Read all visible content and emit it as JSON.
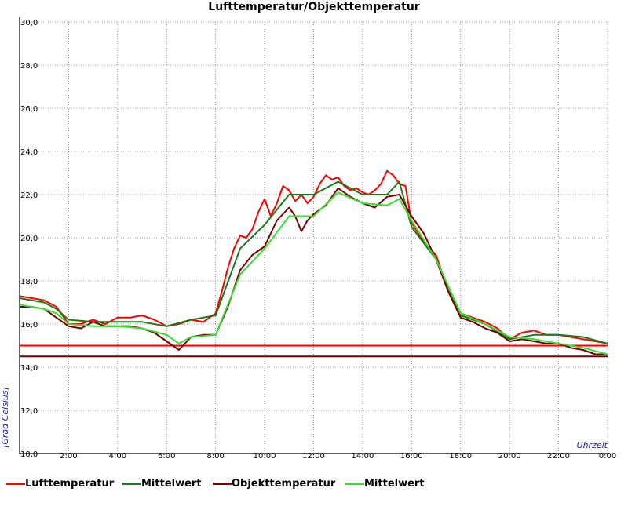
{
  "chart_data": {
    "type": "line",
    "title": "Lufttemperatur/Objekttemperatur",
    "ylabel": "[Grad Celsius]",
    "xlabel": "Uhrzeit",
    "xlim": [
      0,
      24
    ],
    "ylim": [
      10,
      30
    ],
    "y_ticks": [
      "10,0",
      "12,0",
      "14,0",
      "16,0",
      "18,0",
      "20,0",
      "22,0",
      "24,0",
      "26,0",
      "28,0",
      "30,0"
    ],
    "x_ticks": [
      "2:00",
      "4:00",
      "6:00",
      "8:00",
      "10:00",
      "12:00",
      "14:00",
      "16:00",
      "18:00",
      "20:00",
      "22:00",
      "0:00"
    ],
    "grid": true,
    "legend_position": "bottom",
    "reference_lines": [
      {
        "y": 15.0,
        "color": "#ff0000"
      },
      {
        "y": 14.5,
        "color": "#7a0000"
      }
    ],
    "series": [
      {
        "name": "Lufttemperatur",
        "color": "#ff0000",
        "x": [
          0,
          0.5,
          1,
          1.5,
          2,
          2.5,
          3,
          3.5,
          4,
          4.5,
          5,
          5.5,
          6,
          6.5,
          7,
          7.5,
          8,
          8.25,
          8.5,
          8.75,
          9,
          9.25,
          9.5,
          9.75,
          10,
          10.25,
          10.5,
          10.75,
          11,
          11.25,
          11.5,
          11.75,
          12,
          12.25,
          12.5,
          12.75,
          13,
          13.25,
          13.5,
          13.75,
          14,
          14.25,
          14.5,
          14.75,
          15,
          15.25,
          15.5,
          15.75,
          16,
          16.5,
          17,
          17.5,
          18,
          18.5,
          19,
          19.5,
          20,
          20.5,
          21,
          21.5,
          22,
          22.5,
          23,
          23.5,
          24
        ],
        "y": [
          17.3,
          17.2,
          17.1,
          16.8,
          16.0,
          16.0,
          16.2,
          16.0,
          16.3,
          16.3,
          16.4,
          16.2,
          15.9,
          16.0,
          16.2,
          16.1,
          16.5,
          17.5,
          18.6,
          19.5,
          20.1,
          20.0,
          20.4,
          21.2,
          21.8,
          21.0,
          21.6,
          22.4,
          22.2,
          21.7,
          22.0,
          21.6,
          21.9,
          22.5,
          22.9,
          22.7,
          22.8,
          22.4,
          22.2,
          22.3,
          22.1,
          22.0,
          22.2,
          22.5,
          23.1,
          22.9,
          22.5,
          22.4,
          20.7,
          19.8,
          19.2,
          17.5,
          16.5,
          16.3,
          16.1,
          15.8,
          15.3,
          15.6,
          15.7,
          15.5,
          15.5,
          15.4,
          15.3,
          15.2,
          15.1
        ]
      },
      {
        "name": "Mittelwert",
        "color": "#1a7a1a",
        "x": [
          0,
          1,
          1.5,
          2,
          3,
          4,
          5,
          6,
          7,
          8,
          9,
          10,
          11,
          12,
          13,
          14,
          15,
          15.5,
          16,
          17,
          18,
          19,
          20,
          21,
          22,
          23,
          24
        ],
        "y": [
          17.2,
          17.0,
          16.7,
          16.2,
          16.1,
          16.1,
          16.1,
          15.9,
          16.2,
          16.4,
          19.5,
          20.6,
          22.0,
          22.0,
          22.6,
          22.0,
          22.0,
          22.6,
          20.5,
          19.0,
          16.4,
          16.0,
          15.3,
          15.5,
          15.5,
          15.4,
          15.1
        ]
      },
      {
        "name": "Objekttemperatur",
        "color": "#7a0000",
        "x": [
          0,
          0.5,
          1,
          1.5,
          2,
          2.5,
          3,
          3.5,
          4,
          4.5,
          5,
          5.5,
          6,
          6.5,
          7,
          7.5,
          8,
          8.5,
          9,
          9.5,
          10,
          10.5,
          11,
          11.25,
          11.5,
          11.75,
          12,
          12.5,
          13,
          13.5,
          14,
          14.5,
          15,
          15.5,
          16,
          16.5,
          17,
          17.5,
          18,
          18.5,
          19,
          19.5,
          20,
          20.5,
          21,
          21.5,
          22,
          22.5,
          23,
          23.5,
          24
        ],
        "y": [
          16.8,
          16.8,
          16.7,
          16.3,
          15.9,
          15.8,
          16.1,
          15.9,
          15.9,
          15.9,
          15.8,
          15.6,
          15.2,
          14.8,
          15.4,
          15.5,
          15.5,
          16.8,
          18.5,
          19.2,
          19.6,
          20.8,
          21.4,
          21.0,
          20.3,
          20.8,
          21.1,
          21.5,
          22.3,
          21.9,
          21.6,
          21.4,
          21.9,
          22.0,
          21.0,
          20.2,
          19.0,
          17.5,
          16.3,
          16.1,
          15.8,
          15.6,
          15.2,
          15.3,
          15.2,
          15.1,
          15.1,
          14.9,
          14.8,
          14.6,
          14.6
        ]
      },
      {
        "name": "Mittelwert",
        "color": "#33e033",
        "x": [
          0,
          1,
          1.5,
          2,
          3,
          4,
          5,
          6,
          6.5,
          7,
          8,
          9,
          10,
          11,
          12,
          13,
          14,
          15,
          15.5,
          16,
          17,
          18,
          19,
          20,
          21,
          22,
          23,
          24
        ],
        "y": [
          16.9,
          16.7,
          16.5,
          16.0,
          15.9,
          15.9,
          15.8,
          15.5,
          15.1,
          15.4,
          15.5,
          18.3,
          19.5,
          21.0,
          21.0,
          22.1,
          21.6,
          21.5,
          21.8,
          20.8,
          19.0,
          16.5,
          16.0,
          15.4,
          15.3,
          15.1,
          14.9,
          14.6
        ]
      }
    ]
  }
}
